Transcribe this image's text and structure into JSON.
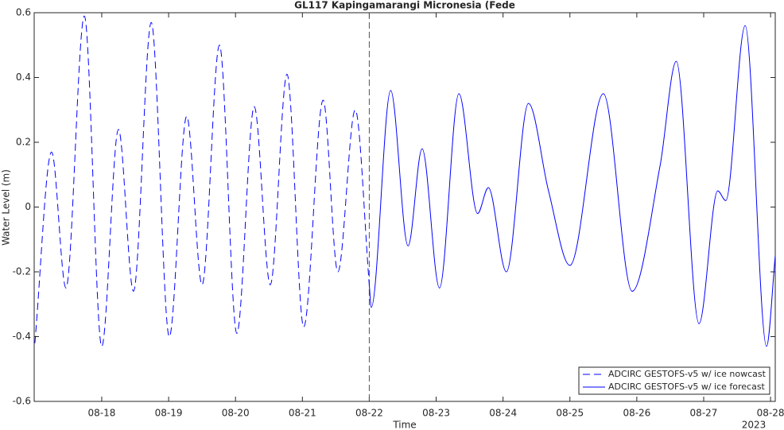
{
  "chart_data": {
    "type": "line",
    "title": "GL117 Kapingamarangi Micronesia (Fede",
    "xlabel": "Time",
    "ylabel": "Water Level (m)",
    "year_label": "2023",
    "xlim": [
      -0.01,
      11.07
    ],
    "ylim": [
      -0.6,
      0.6
    ],
    "xticks": [
      {
        "value": 1,
        "label": "08-18"
      },
      {
        "value": 2,
        "label": "08-19"
      },
      {
        "value": 3,
        "label": "08-20"
      },
      {
        "value": 4,
        "label": "08-21"
      },
      {
        "value": 5,
        "label": "08-22"
      },
      {
        "value": 6,
        "label": "08-23"
      },
      {
        "value": 7,
        "label": "08-24"
      },
      {
        "value": 8,
        "label": "08-25"
      },
      {
        "value": 9,
        "label": "08-26"
      },
      {
        "value": 10,
        "label": "08-27"
      },
      {
        "value": 11,
        "label": "08-28"
      }
    ],
    "yticks": [
      -0.6,
      -0.4,
      -0.2,
      0,
      0.2,
      0.4,
      0.6
    ],
    "divider_x": 5,
    "legend": "bottom-right",
    "series": [
      {
        "name": "ADCIRC GESTOFS-v5 w/ ice nowcast",
        "color": "#0000ff",
        "dash": true,
        "x": [
          0,
          0.25,
          0.465,
          0.74,
          1.0,
          1.25,
          1.475,
          1.74,
          2.01,
          2.27,
          2.5,
          2.76,
          3.02,
          3.28,
          3.52,
          3.77,
          4.02,
          4.31,
          4.53,
          4.79,
          5.0
        ],
        "values": [
          -0.42,
          0.17,
          -0.25,
          0.59,
          -0.43,
          0.24,
          -0.26,
          0.57,
          -0.4,
          0.28,
          -0.24,
          0.5,
          -0.39,
          0.31,
          -0.24,
          0.41,
          -0.37,
          0.33,
          -0.2,
          0.3,
          -0.24
        ]
      },
      {
        "name": "ADCIRC GESTOFS-v5 w/ ice forecast",
        "color": "#0000ff",
        "dash": false,
        "x": [
          5.0,
          5.03,
          5.32,
          5.58,
          5.79,
          6.05,
          6.34,
          6.62,
          6.78,
          7.05,
          7.38,
          7.68,
          8.0,
          8.5,
          8.93,
          9.35,
          9.59,
          9.93,
          10.21,
          10.33,
          10.62,
          10.94,
          11.07
        ],
        "values": [
          -0.24,
          -0.31,
          0.36,
          -0.12,
          0.18,
          -0.25,
          0.35,
          -0.02,
          0.06,
          -0.2,
          0.32,
          0.05,
          -0.18,
          0.35,
          -0.26,
          0.13,
          0.45,
          -0.36,
          0.05,
          0.02,
          0.56,
          -0.43,
          -0.15
        ]
      }
    ]
  }
}
